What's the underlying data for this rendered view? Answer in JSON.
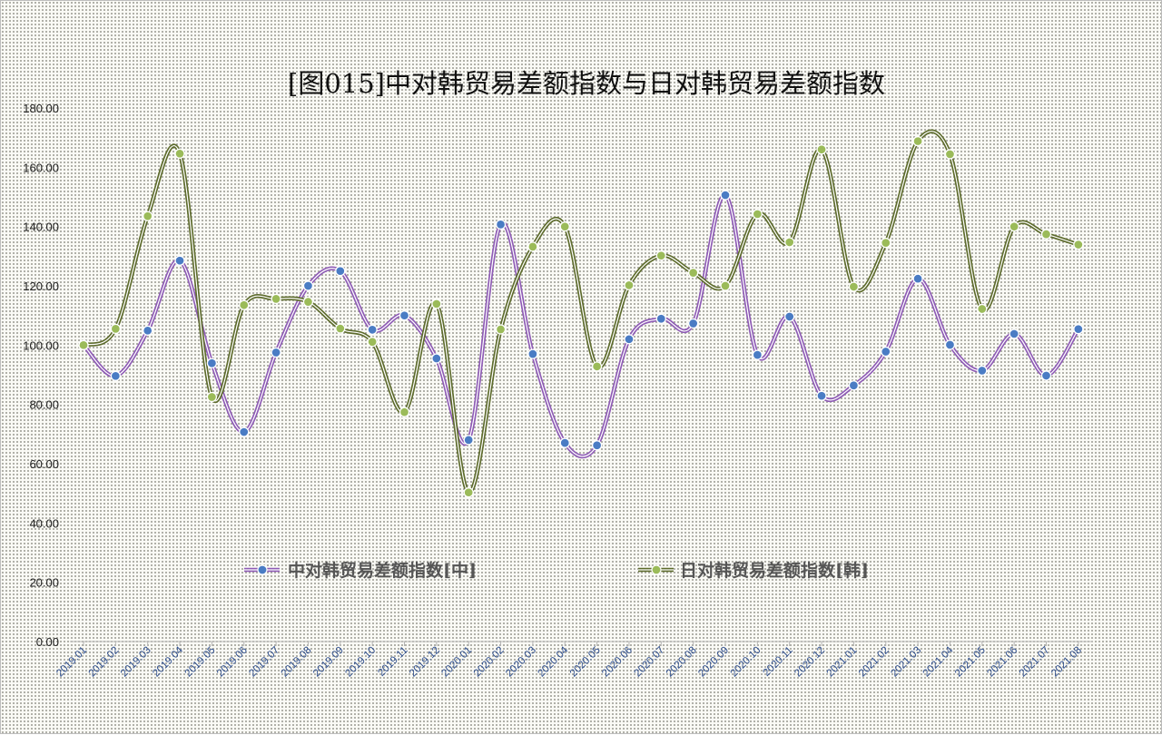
{
  "chart_data": {
    "type": "line",
    "title": "[图015]中对韩贸易差额指数与日对韩贸易差额指数",
    "xlabel": "",
    "ylabel": "",
    "ylim": [
      0,
      180
    ],
    "yticks": [
      "0.00",
      "20.00",
      "40.00",
      "60.00",
      "80.00",
      "100.00",
      "120.00",
      "140.00",
      "160.00",
      "180.00"
    ],
    "grid": false,
    "legend_position": "bottom-center",
    "categories": [
      "2019.01",
      "2019.02",
      "2019.03",
      "2019.04",
      "2019.05",
      "2019.06",
      "2019.07",
      "2019.08",
      "2019.09",
      "2019.10",
      "2019.11",
      "2019.12",
      "2020.01",
      "2020.02",
      "2020.03",
      "2020.04",
      "2020.05",
      "2020.06",
      "2020.07",
      "2020.08",
      "2020.09",
      "2020.10",
      "2020.11",
      "2020.12",
      "2021.01",
      "2021.02",
      "2021.03",
      "2021.04",
      "2021.05",
      "2021.06",
      "2021.07",
      "2021.08"
    ],
    "series": [
      {
        "name": "中对韩贸易差额指数[中]",
        "line_color": "#8e5bb5",
        "marker_color": "#4a7cc4",
        "values": [
          100.0,
          89.6,
          104.9,
          128.5,
          93.9,
          70.7,
          97.5,
          120.0,
          125.0,
          105.2,
          110.0,
          95.5,
          68.0,
          140.7,
          97.0,
          67.0,
          66.2,
          102.0,
          108.9,
          107.3,
          150.6,
          96.7,
          109.6,
          82.9,
          86.4,
          97.8,
          122.4,
          100.1,
          91.4,
          103.8,
          89.7,
          105.4
        ]
      },
      {
        "name": "日对韩贸易差额指数[韩]",
        "line_color": "#5d6b2c",
        "marker_color": "#9bbb59",
        "values": [
          100.0,
          105.5,
          143.5,
          164.6,
          82.5,
          113.5,
          115.6,
          114.6,
          105.6,
          101.1,
          77.4,
          113.9,
          50.3,
          105.3,
          133.2,
          140.0,
          92.8,
          120.2,
          130.2,
          124.4,
          120.0,
          144.2,
          134.7,
          166.0,
          119.7,
          134.5,
          168.8,
          164.4,
          112.2,
          140.0,
          137.4,
          133.9
        ]
      }
    ]
  }
}
